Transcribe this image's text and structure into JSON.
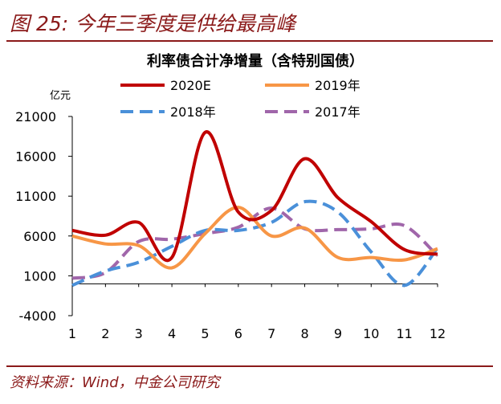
{
  "figure_title": "图 25:  今年三季度是供给最高峰",
  "source": "资料来源：Wind，中金公司研究",
  "colors": {
    "accent": "#8B1A1A",
    "series_2020E": "#C00000",
    "series_2019": "#F79646",
    "series_2018": "#4A90D9",
    "series_2017": "#A066AA"
  },
  "chart_data": {
    "type": "line",
    "title": "利率债合计净增量（含特别国债）",
    "ylabel": "亿元",
    "xlabel": "",
    "x": [
      1,
      2,
      3,
      4,
      5,
      6,
      7,
      8,
      9,
      10,
      11,
      12
    ],
    "x_tick_labels": [
      "1",
      "2",
      "3",
      "4",
      "5",
      "6",
      "7",
      "8",
      "9",
      "10",
      "11",
      "12"
    ],
    "y_ticks": [
      21000,
      16000,
      11000,
      6000,
      1000,
      -4000
    ],
    "y_tick_labels": [
      "21000",
      "16000",
      "11000",
      "6000",
      "1000",
      "-4000"
    ],
    "ylim": [
      -4000,
      21000
    ],
    "grid": false,
    "legend_position": "top",
    "series": [
      {
        "name": "2020E",
        "color": "#C00000",
        "style": "solid",
        "values": [
          6700,
          6100,
          7700,
          3300,
          19000,
          9000,
          9200,
          15700,
          10800,
          7800,
          4300,
          3700
        ]
      },
      {
        "name": "2019年",
        "color": "#F79646",
        "style": "solid",
        "values": [
          6000,
          5000,
          4800,
          2000,
          6300,
          9600,
          6000,
          7000,
          3300,
          3300,
          3000,
          4400
        ]
      },
      {
        "name": "2018年",
        "color": "#4A90D9",
        "style": "dashed",
        "values": [
          -200,
          1600,
          2700,
          4700,
          6700,
          6700,
          7700,
          10300,
          9000,
          4000,
          -200,
          4500
        ]
      },
      {
        "name": "2017年",
        "color": "#A066AA",
        "style": "dashed",
        "values": [
          700,
          1400,
          5300,
          5600,
          6300,
          7100,
          9500,
          6900,
          6800,
          6900,
          7300,
          3500
        ]
      }
    ]
  }
}
